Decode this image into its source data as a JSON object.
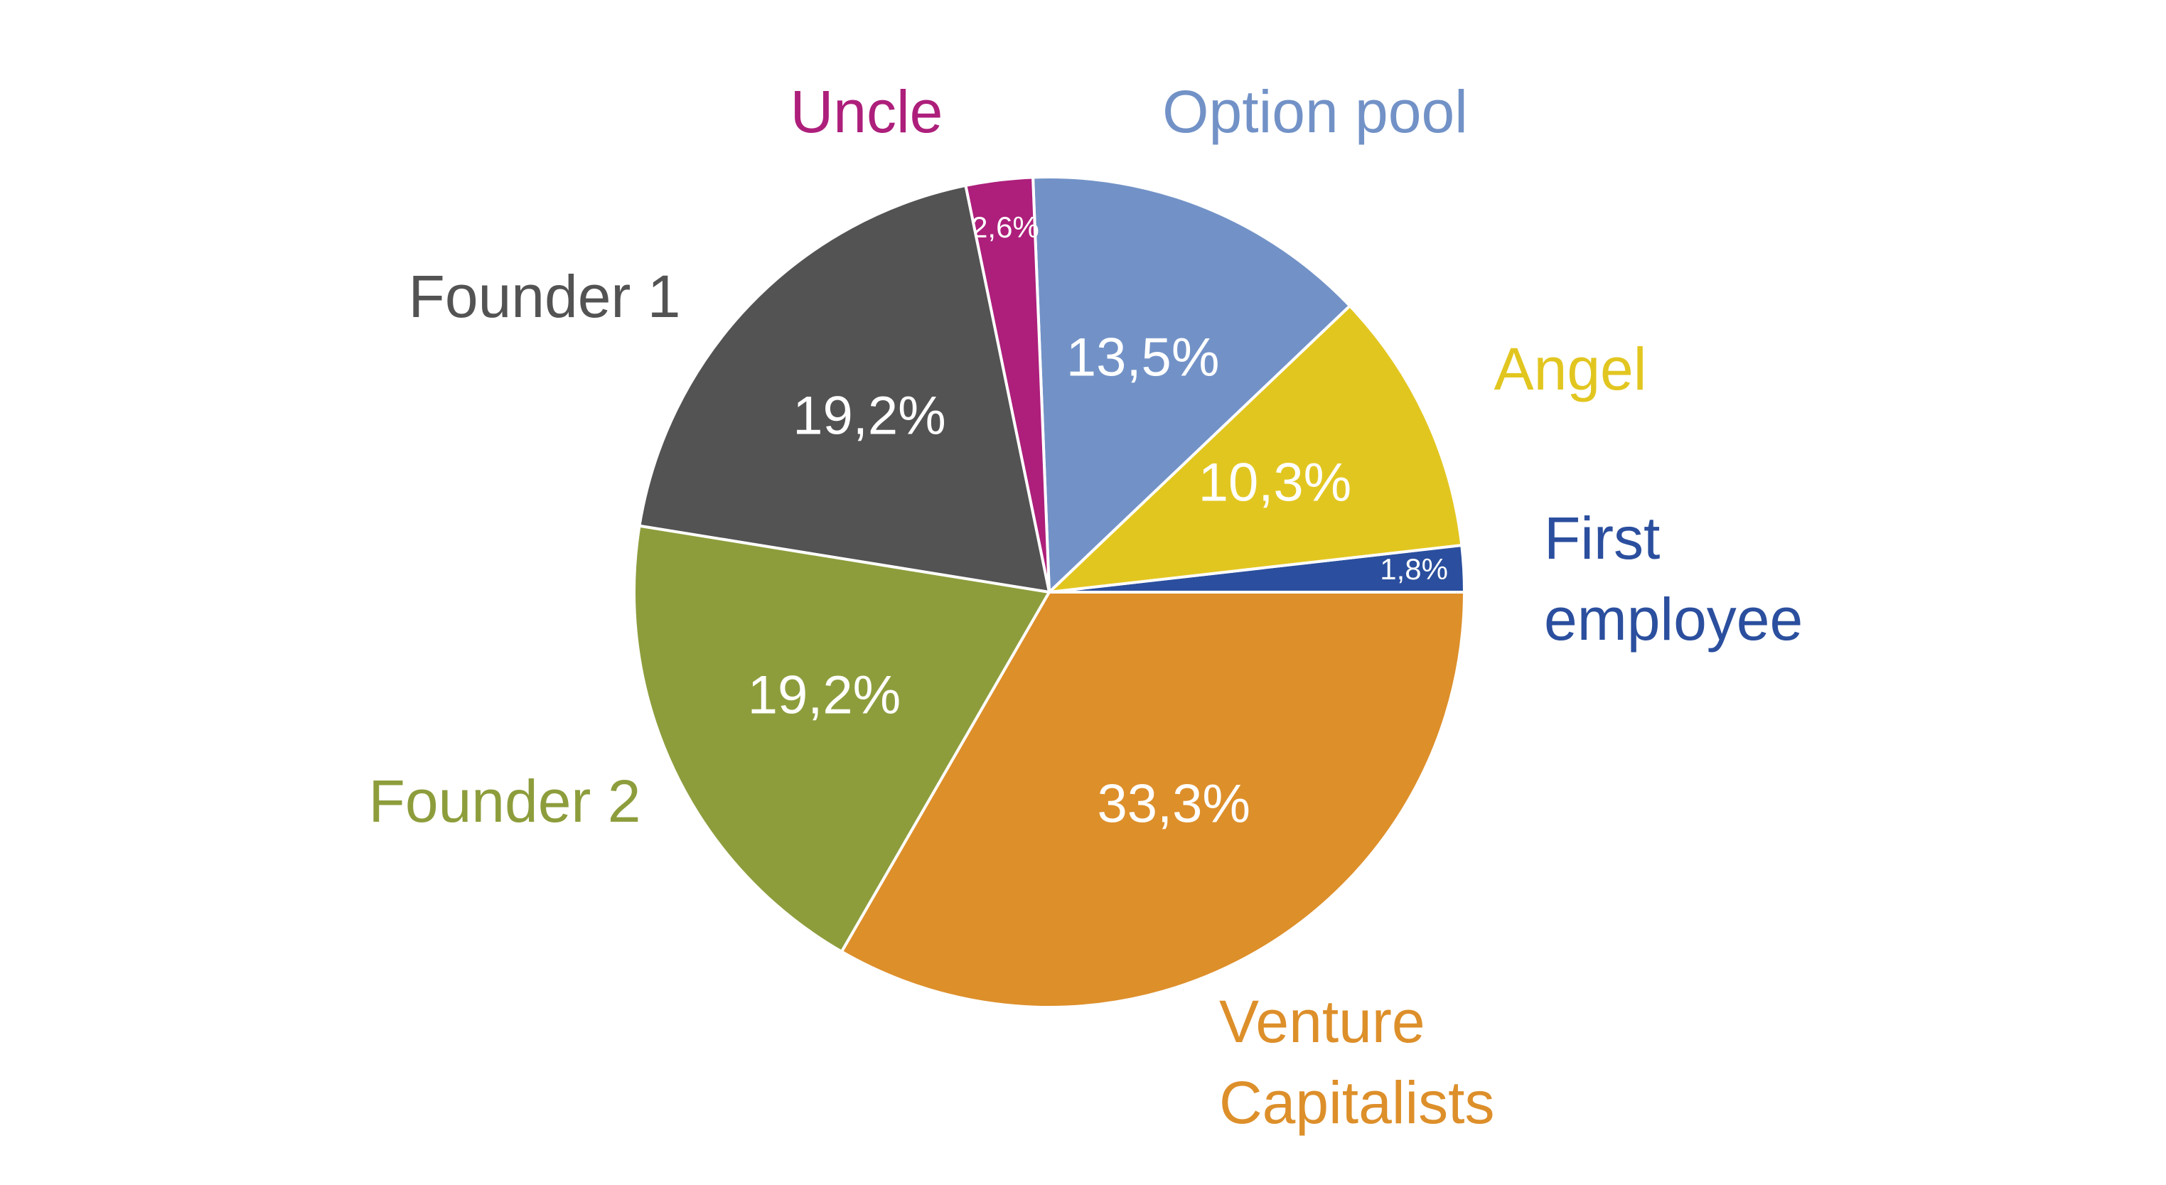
{
  "chart_data": {
    "type": "pie",
    "categories": [
      "First employee",
      "Angel",
      "Option pool",
      "Uncle",
      "Founder 1",
      "Founder 2",
      "Venture Capitalists"
    ],
    "values": [
      1.8,
      10.3,
      13.5,
      2.6,
      19.2,
      19.2,
      33.3
    ],
    "value_labels": [
      "1,8%",
      "10,3%",
      "13,5%",
      "2,6%",
      "19,2%",
      "19,2%",
      "33,3%"
    ],
    "colors": [
      "#2b4f9e",
      "#e2c620",
      "#7292c7",
      "#ad1f7b",
      "#525352",
      "#8e9d3c",
      "#dd8f2a"
    ]
  }
}
